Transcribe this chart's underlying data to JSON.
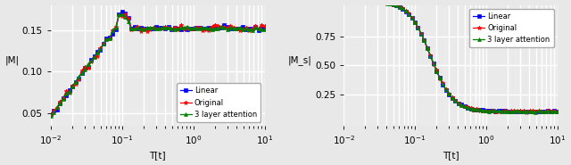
{
  "xlabel": "T[t]",
  "ylabel_left": "|M|",
  "ylabel_right": "|M_s|",
  "legend_labels": [
    "Linear",
    "Original",
    "3 layer attention"
  ],
  "legend_colors": [
    "blue",
    "red",
    "green"
  ],
  "legend_markers": [
    "s",
    "*",
    "^"
  ],
  "background_color": "#eaeaea",
  "grid_color": "white",
  "xlim_left": [
    0.01,
    10
  ],
  "xlim_right": [
    0.01,
    10
  ],
  "ylim_left": [
    0.035,
    0.18
  ],
  "ylim_right": [
    -0.02,
    1.02
  ],
  "yticks_left": [
    0.05,
    0.1,
    0.15
  ],
  "yticks_right": [
    0.25,
    0.5,
    0.75
  ],
  "font_size": 7.5,
  "fig_facecolor": "#e8e8e8"
}
